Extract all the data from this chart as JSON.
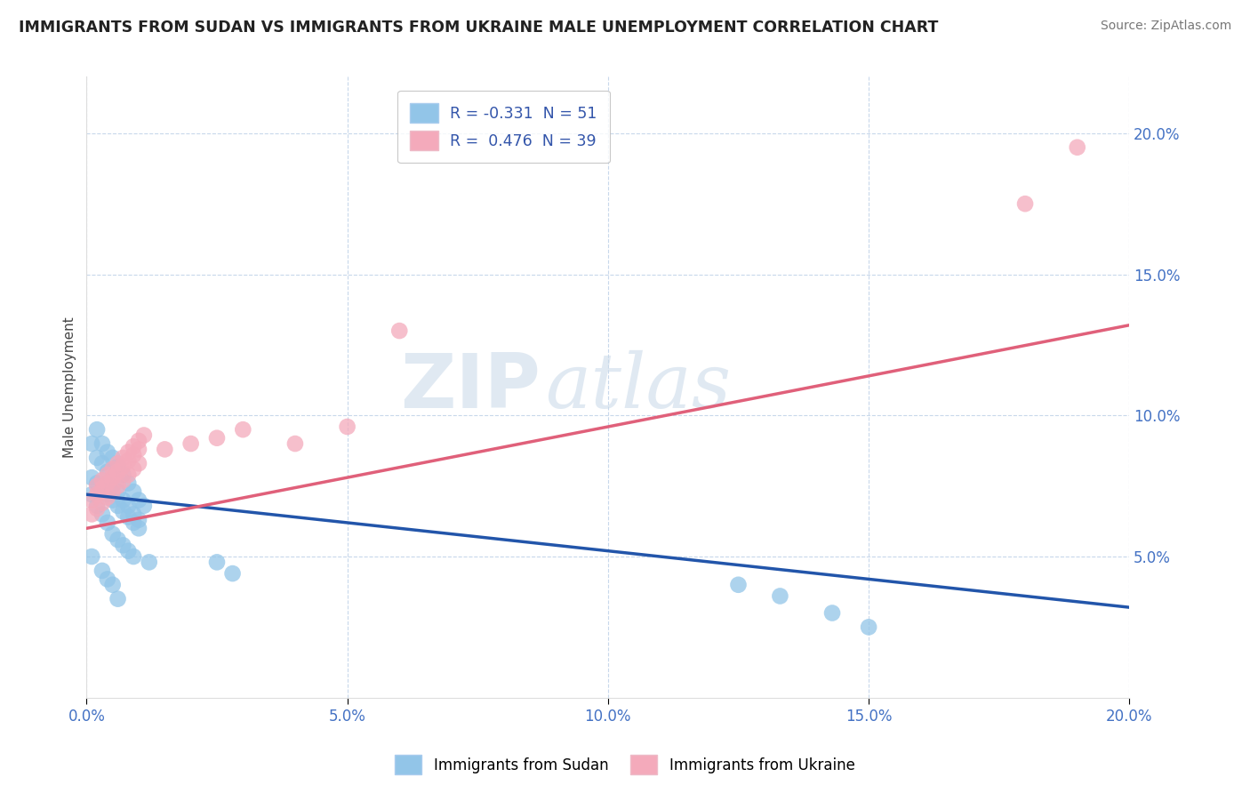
{
  "title": "IMMIGRANTS FROM SUDAN VS IMMIGRANTS FROM UKRAINE MALE UNEMPLOYMENT CORRELATION CHART",
  "source": "Source: ZipAtlas.com",
  "xlim": [
    0.0,
    0.2
  ],
  "ylim": [
    0.0,
    0.22
  ],
  "watermark_zip": "ZIP",
  "watermark_atlas": "atlas",
  "legend1_r": "-0.331",
  "legend1_n": "51",
  "legend2_r": "0.476",
  "legend2_n": "39",
  "sudan_color": "#92C5E8",
  "ukraine_color": "#F4AABB",
  "sudan_line_color": "#2255AA",
  "ukraine_line_color": "#E0607A",
  "sudan_line_intercept": 0.072,
  "sudan_line_slope": -0.2,
  "ukraine_line_intercept": 0.06,
  "ukraine_line_slope": 0.36,
  "tick_color": "#4472C4",
  "grid_color": "#C8D8EB",
  "ylabel_color": "#444444",
  "sudan_x": [
    0.001,
    0.002,
    0.003,
    0.004,
    0.005,
    0.006,
    0.007,
    0.008,
    0.009,
    0.01,
    0.002,
    0.003,
    0.004,
    0.005,
    0.006,
    0.007,
    0.008,
    0.009,
    0.01,
    0.011,
    0.001,
    0.002,
    0.003,
    0.004,
    0.005,
    0.006,
    0.007,
    0.008,
    0.009,
    0.01,
    0.001,
    0.002,
    0.003,
    0.004,
    0.005,
    0.006,
    0.007,
    0.008,
    0.009,
    0.012,
    0.001,
    0.003,
    0.004,
    0.005,
    0.006,
    0.025,
    0.028,
    0.125,
    0.133,
    0.143,
    0.15
  ],
  "sudan_y": [
    0.09,
    0.085,
    0.083,
    0.08,
    0.075,
    0.073,
    0.07,
    0.068,
    0.065,
    0.063,
    0.095,
    0.09,
    0.087,
    0.085,
    0.082,
    0.079,
    0.076,
    0.073,
    0.07,
    0.068,
    0.078,
    0.076,
    0.074,
    0.072,
    0.07,
    0.068,
    0.066,
    0.064,
    0.062,
    0.06,
    0.072,
    0.068,
    0.065,
    0.062,
    0.058,
    0.056,
    0.054,
    0.052,
    0.05,
    0.048,
    0.05,
    0.045,
    0.042,
    0.04,
    0.035,
    0.048,
    0.044,
    0.04,
    0.036,
    0.03,
    0.025
  ],
  "ukraine_x": [
    0.001,
    0.002,
    0.003,
    0.004,
    0.005,
    0.006,
    0.007,
    0.008,
    0.009,
    0.01,
    0.002,
    0.003,
    0.004,
    0.005,
    0.006,
    0.007,
    0.008,
    0.009,
    0.01,
    0.011,
    0.001,
    0.002,
    0.003,
    0.004,
    0.005,
    0.006,
    0.007,
    0.008,
    0.009,
    0.01,
    0.015,
    0.02,
    0.025,
    0.03,
    0.04,
    0.05,
    0.06,
    0.18,
    0.19
  ],
  "ukraine_y": [
    0.07,
    0.072,
    0.074,
    0.076,
    0.078,
    0.08,
    0.082,
    0.084,
    0.086,
    0.088,
    0.075,
    0.077,
    0.079,
    0.081,
    0.083,
    0.085,
    0.087,
    0.089,
    0.091,
    0.093,
    0.065,
    0.067,
    0.069,
    0.071,
    0.073,
    0.075,
    0.077,
    0.079,
    0.081,
    0.083,
    0.088,
    0.09,
    0.092,
    0.095,
    0.09,
    0.096,
    0.13,
    0.175,
    0.195
  ]
}
